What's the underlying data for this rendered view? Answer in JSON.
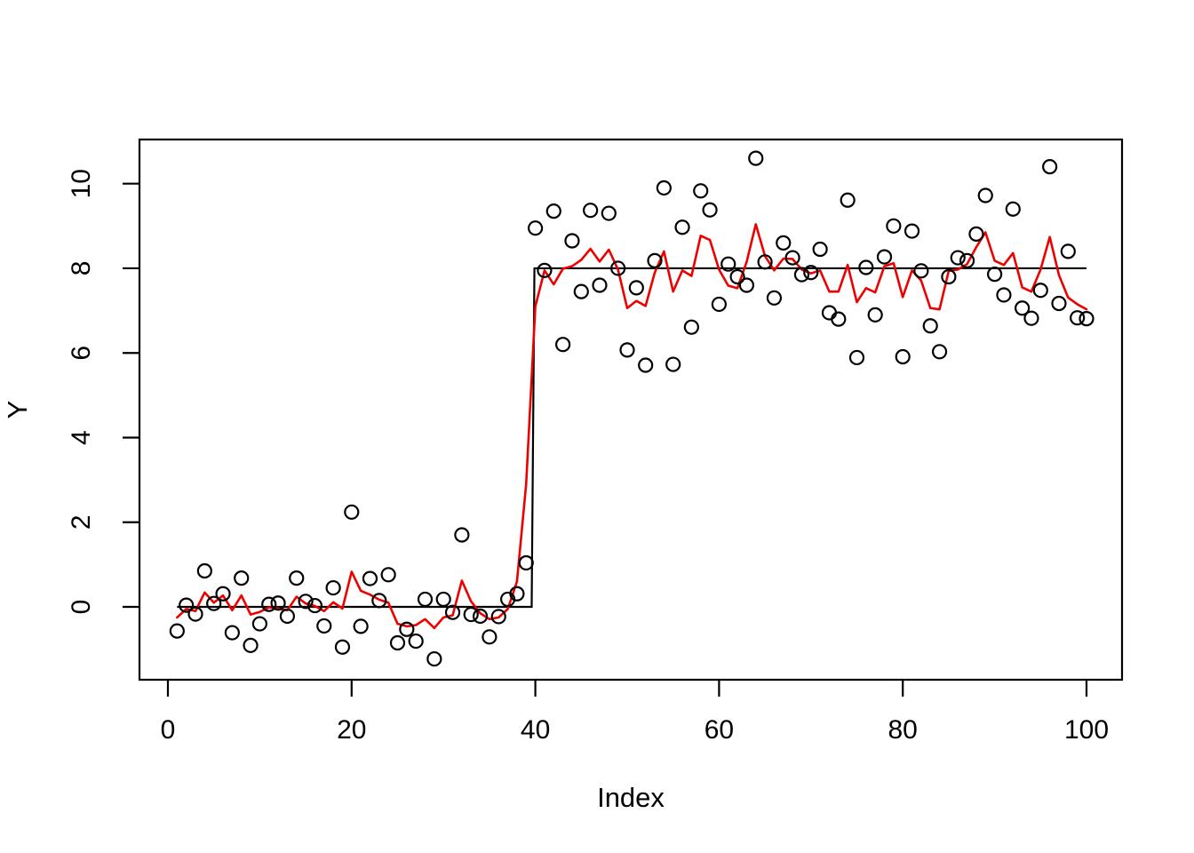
{
  "figure": {
    "background": "#ffffff",
    "frame_color": "#000000",
    "point_color": "#000000",
    "smooth_line_color": "#ee0000",
    "step_line_color": "#000000"
  },
  "chart_data": {
    "type": "scatter",
    "title": "",
    "xlabel": "Index",
    "ylabel": "Y",
    "x_ticks": [
      0,
      20,
      40,
      60,
      80,
      100
    ],
    "y_ticks": [
      0,
      2,
      4,
      6,
      8,
      10
    ],
    "xlim": [
      -3.1,
      103.9
    ],
    "ylim": [
      -1.72,
      11.04
    ],
    "grid": false,
    "legend": "none",
    "x": [
      1,
      2,
      3,
      4,
      5,
      6,
      7,
      8,
      9,
      10,
      11,
      12,
      13,
      14,
      15,
      16,
      17,
      18,
      19,
      20,
      21,
      22,
      23,
      24,
      25,
      26,
      27,
      28,
      29,
      30,
      31,
      32,
      33,
      34,
      35,
      36,
      37,
      38,
      39,
      40,
      41,
      42,
      43,
      44,
      45,
      46,
      47,
      48,
      49,
      50,
      51,
      52,
      53,
      54,
      55,
      56,
      57,
      58,
      59,
      60,
      61,
      62,
      63,
      64,
      65,
      66,
      67,
      68,
      69,
      70,
      71,
      72,
      73,
      74,
      75,
      76,
      77,
      78,
      79,
      80,
      81,
      82,
      83,
      84,
      85,
      86,
      87,
      88,
      89,
      90,
      91,
      92,
      93,
      94,
      95,
      96,
      97,
      98,
      99,
      100
    ],
    "series": [
      {
        "name": "observations",
        "style": "open-circle-points",
        "values": [
          -0.57,
          0.04,
          -0.17,
          0.85,
          0.08,
          0.31,
          -0.61,
          0.68,
          -0.91,
          -0.4,
          0.06,
          0.09,
          -0.22,
          0.68,
          0.13,
          0.03,
          -0.45,
          0.45,
          -0.95,
          2.24,
          -0.46,
          0.67,
          0.15,
          0.76,
          -0.85,
          -0.53,
          -0.81,
          0.18,
          -1.23,
          0.18,
          -0.13,
          1.7,
          -0.18,
          -0.22,
          -0.71,
          -0.23,
          0.18,
          0.31,
          1.04,
          8.95,
          7.95,
          9.35,
          6.2,
          8.65,
          7.45,
          9.37,
          7.6,
          9.3,
          8.0,
          6.07,
          7.54,
          5.71,
          8.18,
          9.9,
          5.73,
          8.97,
          6.61,
          9.83,
          9.38,
          7.15,
          8.1,
          7.8,
          7.6,
          10.6,
          8.15,
          7.3,
          8.6,
          8.25,
          7.85,
          7.9,
          8.45,
          6.95,
          6.8,
          9.61,
          5.89,
          8.02,
          6.9,
          8.27,
          9.0,
          5.91,
          8.88,
          7.94,
          6.64,
          6.03,
          7.8,
          8.25,
          8.18,
          8.81,
          9.72,
          7.86,
          7.37,
          9.4,
          7.06,
          6.82,
          7.48,
          10.4,
          7.17,
          8.4,
          6.83,
          6.81
        ]
      },
      {
        "name": "smoothed-estimate",
        "style": "red-line",
        "values": [
          -0.25,
          -0.05,
          -0.1,
          0.34,
          0.1,
          0.27,
          -0.08,
          0.27,
          -0.18,
          -0.12,
          -0.01,
          -0.04,
          -0.08,
          0.24,
          0.08,
          0.02,
          -0.1,
          0.11,
          -0.04,
          0.83,
          0.38,
          0.29,
          0.17,
          0.1,
          -0.4,
          -0.46,
          -0.43,
          -0.29,
          -0.5,
          -0.25,
          -0.2,
          0.62,
          0.13,
          -0.15,
          -0.29,
          -0.25,
          -0.05,
          0.6,
          2.9,
          7.1,
          7.95,
          7.62,
          7.99,
          8.05,
          8.2,
          8.46,
          8.16,
          8.44,
          7.97,
          7.06,
          7.23,
          7.11,
          7.9,
          8.4,
          7.45,
          7.95,
          7.82,
          8.77,
          8.67,
          7.97,
          7.59,
          7.53,
          8.15,
          9.04,
          8.29,
          7.95,
          8.23,
          8.22,
          7.97,
          7.88,
          7.95,
          7.45,
          7.45,
          8.08,
          7.2,
          7.53,
          7.43,
          8.05,
          8.12,
          7.32,
          7.95,
          7.71,
          7.06,
          7.03,
          7.94,
          7.97,
          8.1,
          8.5,
          8.85,
          8.18,
          8.08,
          8.36,
          7.55,
          7.45,
          7.97,
          8.74,
          7.84,
          7.31,
          7.15,
          7.03
        ]
      },
      {
        "name": "true-step-function",
        "style": "black-step-line",
        "points": [
          [
            1,
            0
          ],
          [
            39.6,
            0
          ],
          [
            39.9,
            8
          ],
          [
            100,
            8
          ]
        ]
      }
    ]
  }
}
